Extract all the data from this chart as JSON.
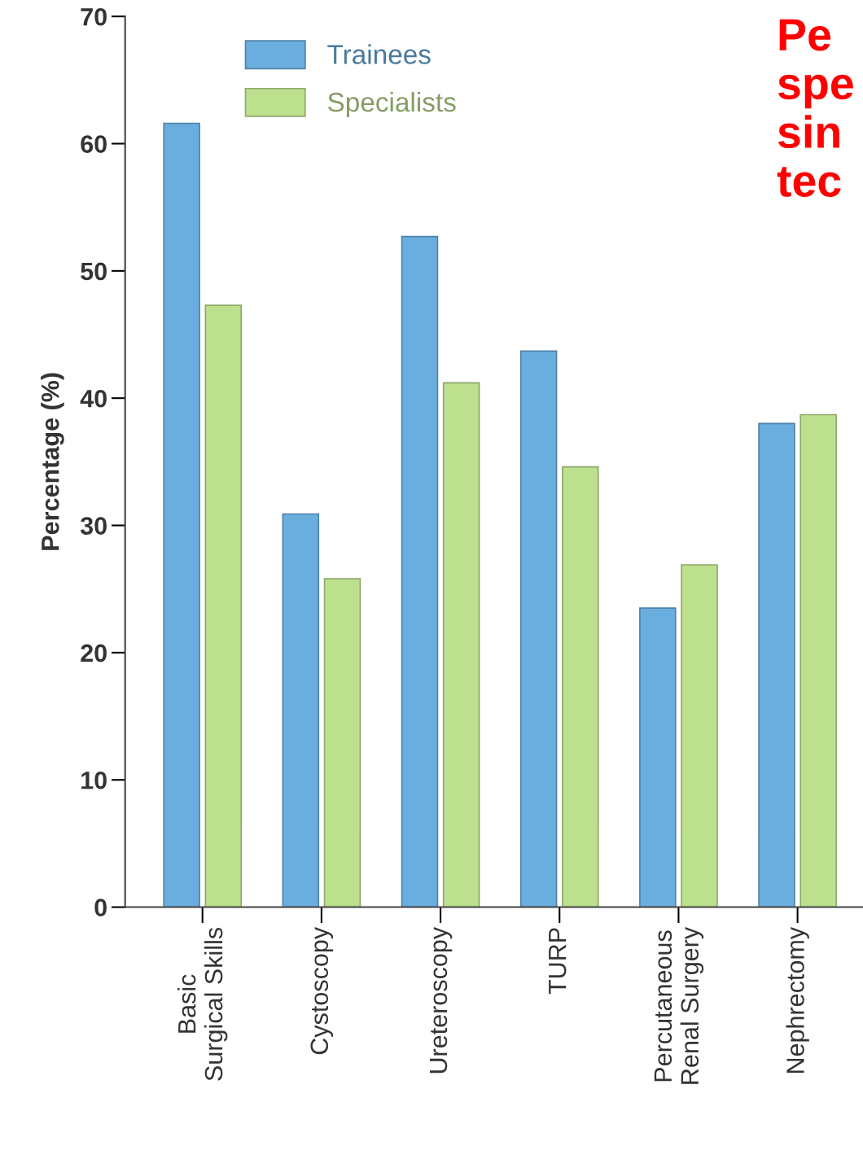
{
  "chart_data": {
    "type": "bar",
    "ylabel": "Percentage (%)",
    "categories": [
      "Basic\nSurgical Skills",
      "Cystoscopy",
      "Ureteroscopy",
      "TURP",
      "Percutaneous\nRenal Surgery",
      "Nephrectomy"
    ],
    "series": [
      {
        "name": "Trainees",
        "color": "#6aaee0",
        "values": [
          61.6,
          30.9,
          52.7,
          43.7,
          23.5,
          38.0
        ]
      },
      {
        "name": "Specialists",
        "color": "#bde08e",
        "values": [
          47.3,
          25.8,
          41.2,
          34.6,
          26.9,
          38.7
        ]
      }
    ],
    "ylim": [
      0,
      70
    ],
    "yticks": [
      0,
      10,
      20,
      30,
      40,
      50,
      60,
      70
    ],
    "grid": false,
    "legend": "top left",
    "annotations": [
      "Pe\nspe\nsin\ntec"
    ]
  }
}
